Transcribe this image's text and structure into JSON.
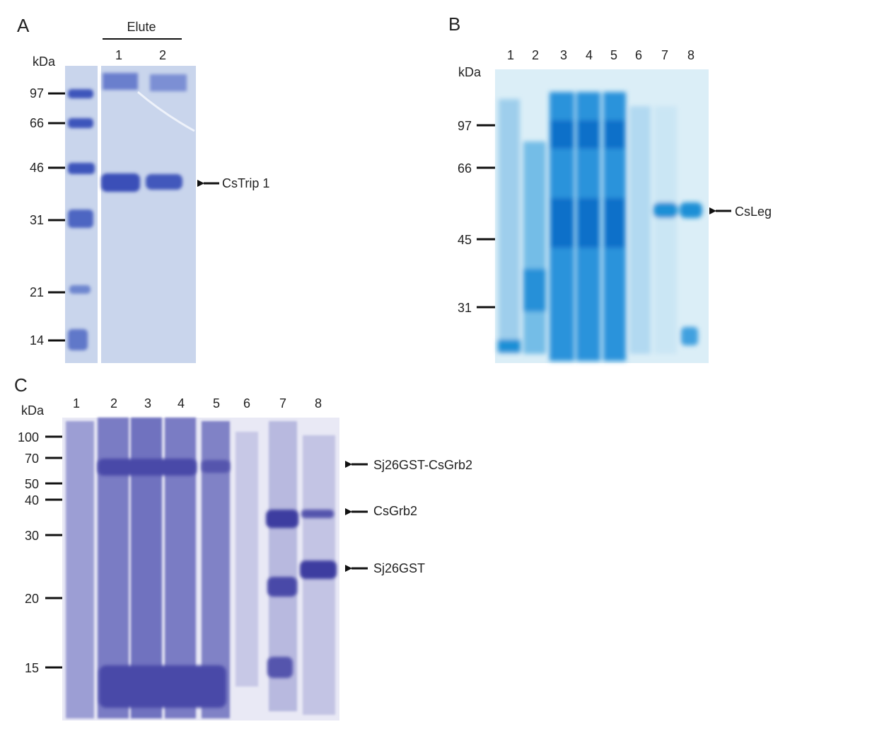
{
  "panel_a": {
    "letter": "A",
    "group_label": "Elute",
    "unit": "kDa",
    "lanes": [
      "1",
      "2"
    ],
    "markers": [
      "97",
      "66",
      "46",
      "31",
      "21",
      "14"
    ],
    "annotation": "CsTrip 1"
  },
  "panel_b": {
    "letter": "B",
    "unit": "kDa",
    "lanes": [
      "1",
      "2",
      "3",
      "4",
      "5",
      "6",
      "7",
      "8"
    ],
    "markers": [
      "97",
      "66",
      "45",
      "31"
    ],
    "annotation": "CsLeg"
  },
  "panel_c": {
    "letter": "C",
    "unit": "kDa",
    "lanes": [
      "1",
      "2",
      "3",
      "4",
      "5",
      "6",
      "7",
      "8"
    ],
    "markers": [
      "100",
      "70",
      "50",
      "40",
      "30",
      "20",
      "15"
    ],
    "annotations": [
      "Sj26GST-CsGrb2",
      "CsGrb2",
      "Sj26GST"
    ]
  },
  "colors": {
    "gel_a_bg": "#c9d5ec",
    "gel_a_band": "#3a4fb8",
    "gel_b_bg": "#dbeef7",
    "gel_b_band": "#1f8fd6",
    "gel_c_bg": "#dcdcef",
    "gel_c_band": "#4a4aa8"
  }
}
